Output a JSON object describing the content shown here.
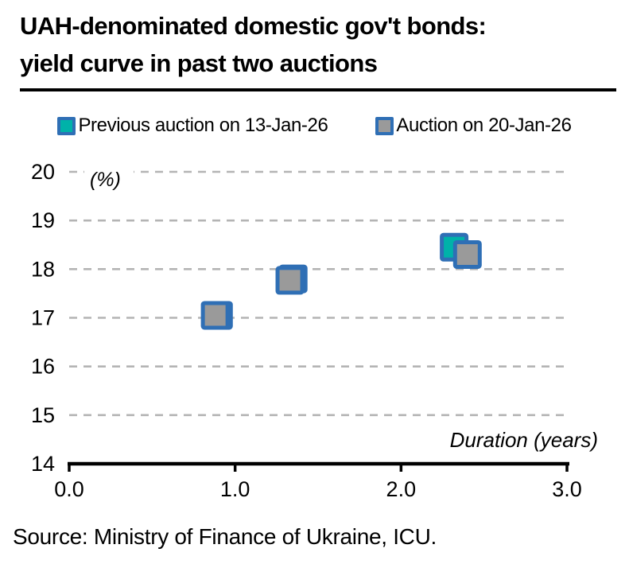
{
  "title": {
    "line1": "UAH-denominated domestic gov't bonds:",
    "line2": "yield curve in past two auctions"
  },
  "chart_data": {
    "type": "scatter",
    "title": "UAH-denominated domestic gov't bonds: yield curve in past two auctions",
    "xlabel": "Duration (years)",
    "ylabel": "(%)",
    "xlim": [
      0.0,
      3.0
    ],
    "ylim": [
      14,
      20
    ],
    "xticks": [
      0.0,
      1.0,
      2.0,
      3.0
    ],
    "xtick_labels": [
      "0.0",
      "1.0",
      "2.0",
      "3.0"
    ],
    "yticks": [
      14,
      15,
      16,
      17,
      18,
      19,
      20
    ],
    "grid": "horizontal dashed gridlines at each whole percent",
    "legend_position": "top",
    "marker": "square",
    "series": [
      {
        "name": "Previous auction on 13-Jan-26",
        "fill": "#00B2A9",
        "stroke": "#2F6FB5",
        "points": [
          [
            0.9,
            17.05
          ],
          [
            1.35,
            17.8
          ],
          [
            2.32,
            18.45
          ]
        ]
      },
      {
        "name": "Auction on 20-Jan-26",
        "fill": "#9A9A9A",
        "stroke": "#2F6FB5",
        "points": [
          [
            0.88,
            17.05
          ],
          [
            1.33,
            17.77
          ],
          [
            2.4,
            18.3
          ]
        ]
      }
    ]
  },
  "source": "Source: Ministry of Finance of Ukraine, ICU.",
  "colors": {
    "background": "#FFFFFF",
    "axis": "#000000",
    "gridline": "#B4B4B4",
    "title_underline": "#000000",
    "marker_border": "#2F6FB5",
    "teal": "#00B2A9",
    "gray": "#9A9A9A"
  }
}
